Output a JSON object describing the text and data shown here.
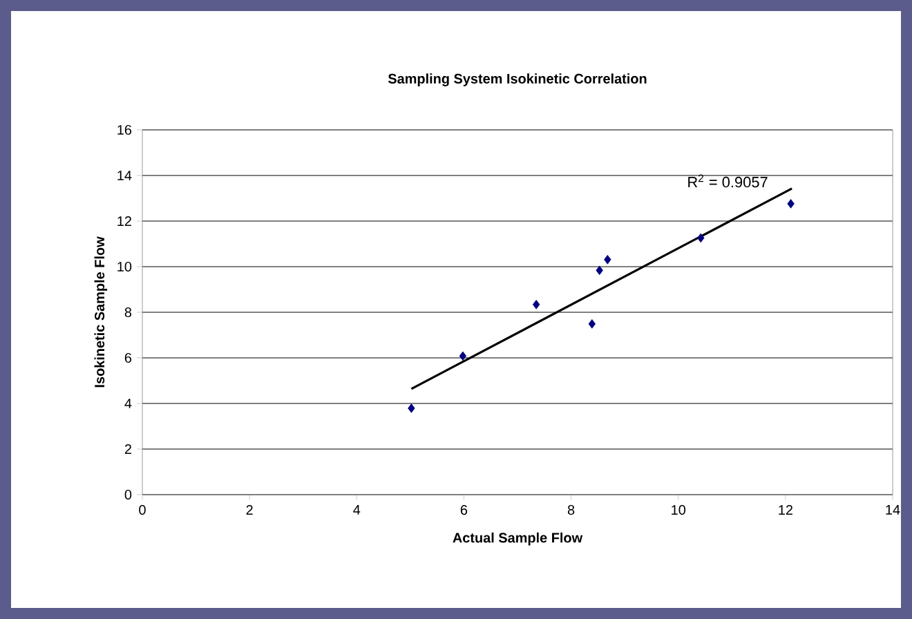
{
  "chart_data": {
    "type": "scatter",
    "title": "Sampling System Isokinetic Correlation",
    "xlabel": "Actual Sample Flow",
    "ylabel": "Isokinetic Sample Flow",
    "series": [
      {
        "color": "#000080",
        "marker": "diamond",
        "x": [
          5.02,
          5.98,
          7.35,
          8.39,
          8.53,
          8.68,
          10.42,
          12.1
        ],
        "values": [
          3.79,
          6.08,
          8.34,
          7.49,
          9.84,
          10.31,
          11.26,
          12.76
        ]
      },
      {
        "type": "line",
        "color": "#000000",
        "marker": "none",
        "x": [
          5.02,
          12.12
        ],
        "values": [
          4.64,
          13.43
        ]
      }
    ],
    "annotations": [
      "R$^{2}$ = 0.9057"
    ],
    "xlim": [
      0,
      14
    ],
    "ylim": [
      0,
      16
    ],
    "xticks": [
      0,
      2,
      4,
      6,
      8,
      10,
      12,
      14
    ],
    "yticks": [
      0,
      2,
      4,
      6,
      8,
      10,
      12,
      14,
      16
    ],
    "grid": "y"
  }
}
